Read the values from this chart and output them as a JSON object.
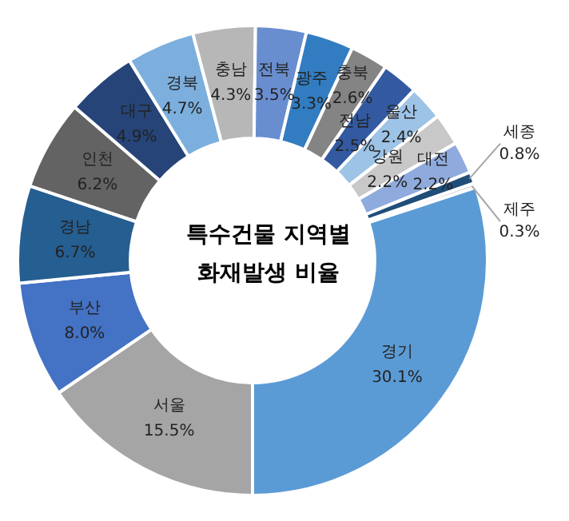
{
  "chart_data": {
    "type": "donut",
    "title": "특수건물 지역별 화재발생 비율",
    "categories": [
      "경기",
      "서울",
      "부산",
      "경남",
      "인천",
      "대구",
      "경북",
      "충남",
      "전북",
      "광주",
      "충북",
      "전남",
      "울산",
      "강원",
      "대전",
      "세종",
      "제주"
    ],
    "values": [
      30.1,
      15.5,
      8.0,
      6.7,
      6.2,
      4.9,
      4.7,
      4.3,
      3.5,
      3.3,
      2.6,
      2.5,
      2.4,
      2.2,
      2.2,
      0.8,
      0.3
    ],
    "value_labels": [
      "30.1%",
      "15.5%",
      "8.0%",
      "6.7%",
      "6.2%",
      "4.9%",
      "4.7%",
      "4.3%",
      "3.5%",
      "3.3%",
      "2.6%",
      "2.5%",
      "2.4%",
      "2.2%",
      "2.2%",
      "0.8%",
      "0.3%"
    ],
    "colors": [
      "#5b9bd5",
      "#a5a5a5",
      "#4472c4",
      "#255e91",
      "#636363",
      "#264478",
      "#7cafdd",
      "#b7b7b7",
      "#698ed0",
      "#327dc2",
      "#848484",
      "#335aa1",
      "#9dc3e6",
      "#c8c8c8",
      "#8faadc",
      "#1f4e79",
      "#d9d9d9"
    ],
    "legend": false
  }
}
